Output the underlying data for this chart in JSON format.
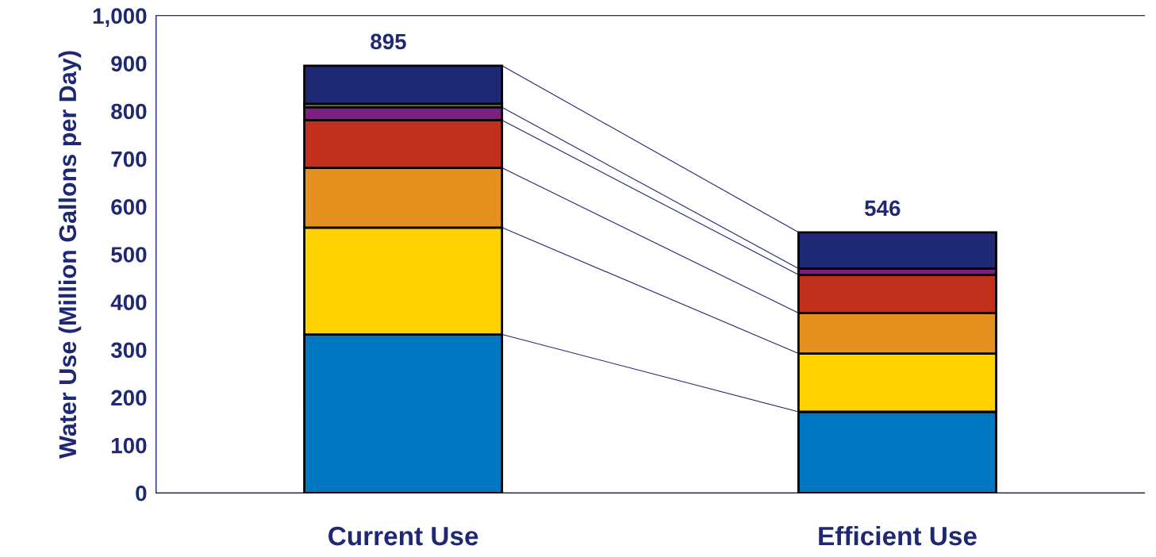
{
  "chart_data": {
    "type": "bar",
    "stacked": true,
    "ylabel": "Water Use (Million Gallons per Day)",
    "categories": [
      "Current Use",
      "Efficient Use"
    ],
    "series": [
      {
        "color": "#0077c0",
        "values": [
          332,
          170
        ]
      },
      {
        "color": "#ffd200",
        "values": [
          224,
          122
        ]
      },
      {
        "color": "#e59120",
        "values": [
          125,
          85
        ]
      },
      {
        "color": "#c0301c",
        "values": [
          100,
          80
        ]
      },
      {
        "color": "#7b2080",
        "values": [
          27,
          13
        ]
      },
      {
        "color": "#8fa030",
        "values": [
          7,
          null
        ]
      },
      {
        "color": "#1f2872",
        "values": [
          80,
          76
        ]
      }
    ],
    "totals": [
      "895",
      "546"
    ],
    "ylim": [
      0,
      1000
    ],
    "yticks": [
      0,
      100,
      200,
      300,
      400,
      500,
      600,
      700,
      800,
      900,
      {
        "value": 1000,
        "label": "1,000"
      }
    ],
    "grid": false,
    "legend": false
  }
}
